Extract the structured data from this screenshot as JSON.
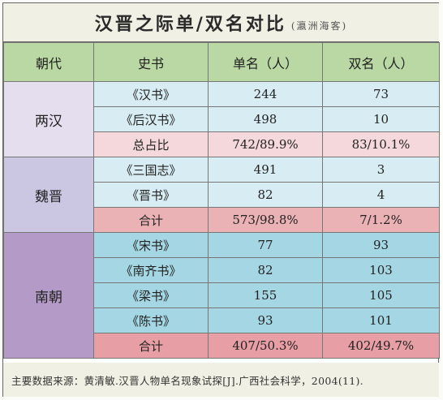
{
  "title": {
    "main": "汉晋之际单/双名对比",
    "sub": "(瀛洲海客)"
  },
  "columns": [
    "朝代",
    "史书",
    "单名（人）",
    "双名（人）"
  ],
  "groups": {
    "han": {
      "dynasty": "两汉",
      "rows": [
        {
          "book": "《汉书》",
          "single": "244",
          "double": "73"
        },
        {
          "book": "《后汉书》",
          "single": "498",
          "double": "10"
        }
      ],
      "summary": {
        "label": "总占比",
        "single": "742/89.9%",
        "double": "83/10.1%"
      }
    },
    "wei": {
      "dynasty": "魏晋",
      "rows": [
        {
          "book": "《三国志》",
          "single": "491",
          "double": "3"
        },
        {
          "book": "《晋书》",
          "single": "82",
          "double": "4"
        }
      ],
      "summary": {
        "label": "合计",
        "single": "573/98.8%",
        "double": "7/1.2%"
      }
    },
    "nan": {
      "dynasty": "南朝",
      "rows": [
        {
          "book": "《宋书》",
          "single": "77",
          "double": "93"
        },
        {
          "book": "《南齐书》",
          "single": "82",
          "double": "103"
        },
        {
          "book": "《梁书》",
          "single": "155",
          "double": "105"
        },
        {
          "book": "《陈书》",
          "single": "93",
          "double": "101"
        }
      ],
      "summary": {
        "label": "合计",
        "single": "407/50.3%",
        "double": "402/49.7%"
      }
    }
  },
  "footer": "主要数据来源：黄清敏.汉晋人物单名现象试探[J].广西社会科学，2004(11)."
}
